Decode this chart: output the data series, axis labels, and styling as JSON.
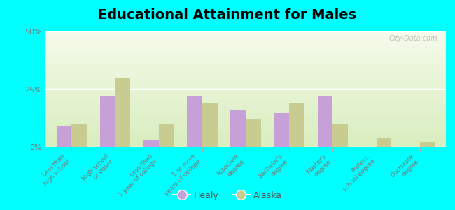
{
  "title": "Educational Attainment for Males",
  "categories": [
    "Less than\nhigh school",
    "High school\nor equiv.",
    "Less than\n1 year of college",
    "1 or more\nyears of college",
    "Associate\ndegree",
    "Bachelor's\ndegree",
    "Master's\ndegree",
    "Profess.\nschool degree",
    "Doctorate\ndegree"
  ],
  "healy": [
    9,
    22,
    3,
    22,
    16,
    15,
    22,
    0,
    0
  ],
  "alaska": [
    10,
    30,
    10,
    19,
    12,
    19,
    10,
    4,
    2
  ],
  "healy_color": "#c8a0d8",
  "alaska_color": "#c8cc90",
  "background_color": "#00ffff",
  "ylim": [
    0,
    50
  ],
  "yticks": [
    0,
    25,
    50
  ],
  "ytick_labels": [
    "0%",
    "25%",
    "50%"
  ],
  "watermark": "City-Data.com",
  "title_fontsize": 14,
  "grad_top": "#f5faea",
  "grad_bottom": "#d8edbe"
}
